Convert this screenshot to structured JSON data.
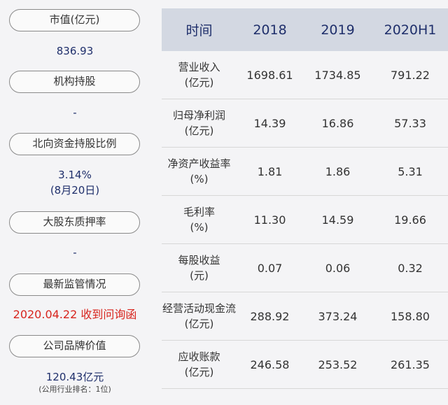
{
  "left": {
    "market_cap_label": "市值(亿元)",
    "market_cap_value": "836.93",
    "institution_label": "机构持股",
    "institution_value": "-",
    "northbound_label": "北向资金持股比例",
    "northbound_value": "3.14%",
    "northbound_date": "(8月20日)",
    "pledge_label": "大股东质押率",
    "pledge_value": "-",
    "regulation_label": "最新监管情况",
    "regulation_value": "2020.04.22 收到问询函",
    "brand_label": "公司品牌价值",
    "brand_value": "120.43亿元",
    "brand_rank": "(公用行业排名：1位)"
  },
  "table": {
    "headers": [
      "时间",
      "2018",
      "2019",
      "2020H1"
    ],
    "rows": [
      {
        "label1": "营业收入",
        "label2": "(亿元)",
        "v2018": "1698.61",
        "v2019": "1734.85",
        "v2020": "791.22"
      },
      {
        "label1": "归母净利润",
        "label2": "(亿元)",
        "v2018": "14.39",
        "v2019": "16.86",
        "v2020": "57.33"
      },
      {
        "label1": "净资产收益率",
        "label2": "(%)",
        "v2018": "1.81",
        "v2019": "1.86",
        "v2020": "5.31"
      },
      {
        "label1": "毛利率",
        "label2": "(%)",
        "v2018": "11.30",
        "v2019": "14.59",
        "v2020": "19.66"
      },
      {
        "label1": "每股收益",
        "label2": "(元)",
        "v2018": "0.07",
        "v2019": "0.06",
        "v2020": "0.32"
      },
      {
        "label1": "经营活动现金流",
        "label2": "(亿元)",
        "v2018": "288.92",
        "v2019": "373.24",
        "v2020": "158.80"
      },
      {
        "label1": "应收账款",
        "label2": "(亿元)",
        "v2018": "246.58",
        "v2019": "253.52",
        "v2020": "261.35"
      }
    ]
  }
}
